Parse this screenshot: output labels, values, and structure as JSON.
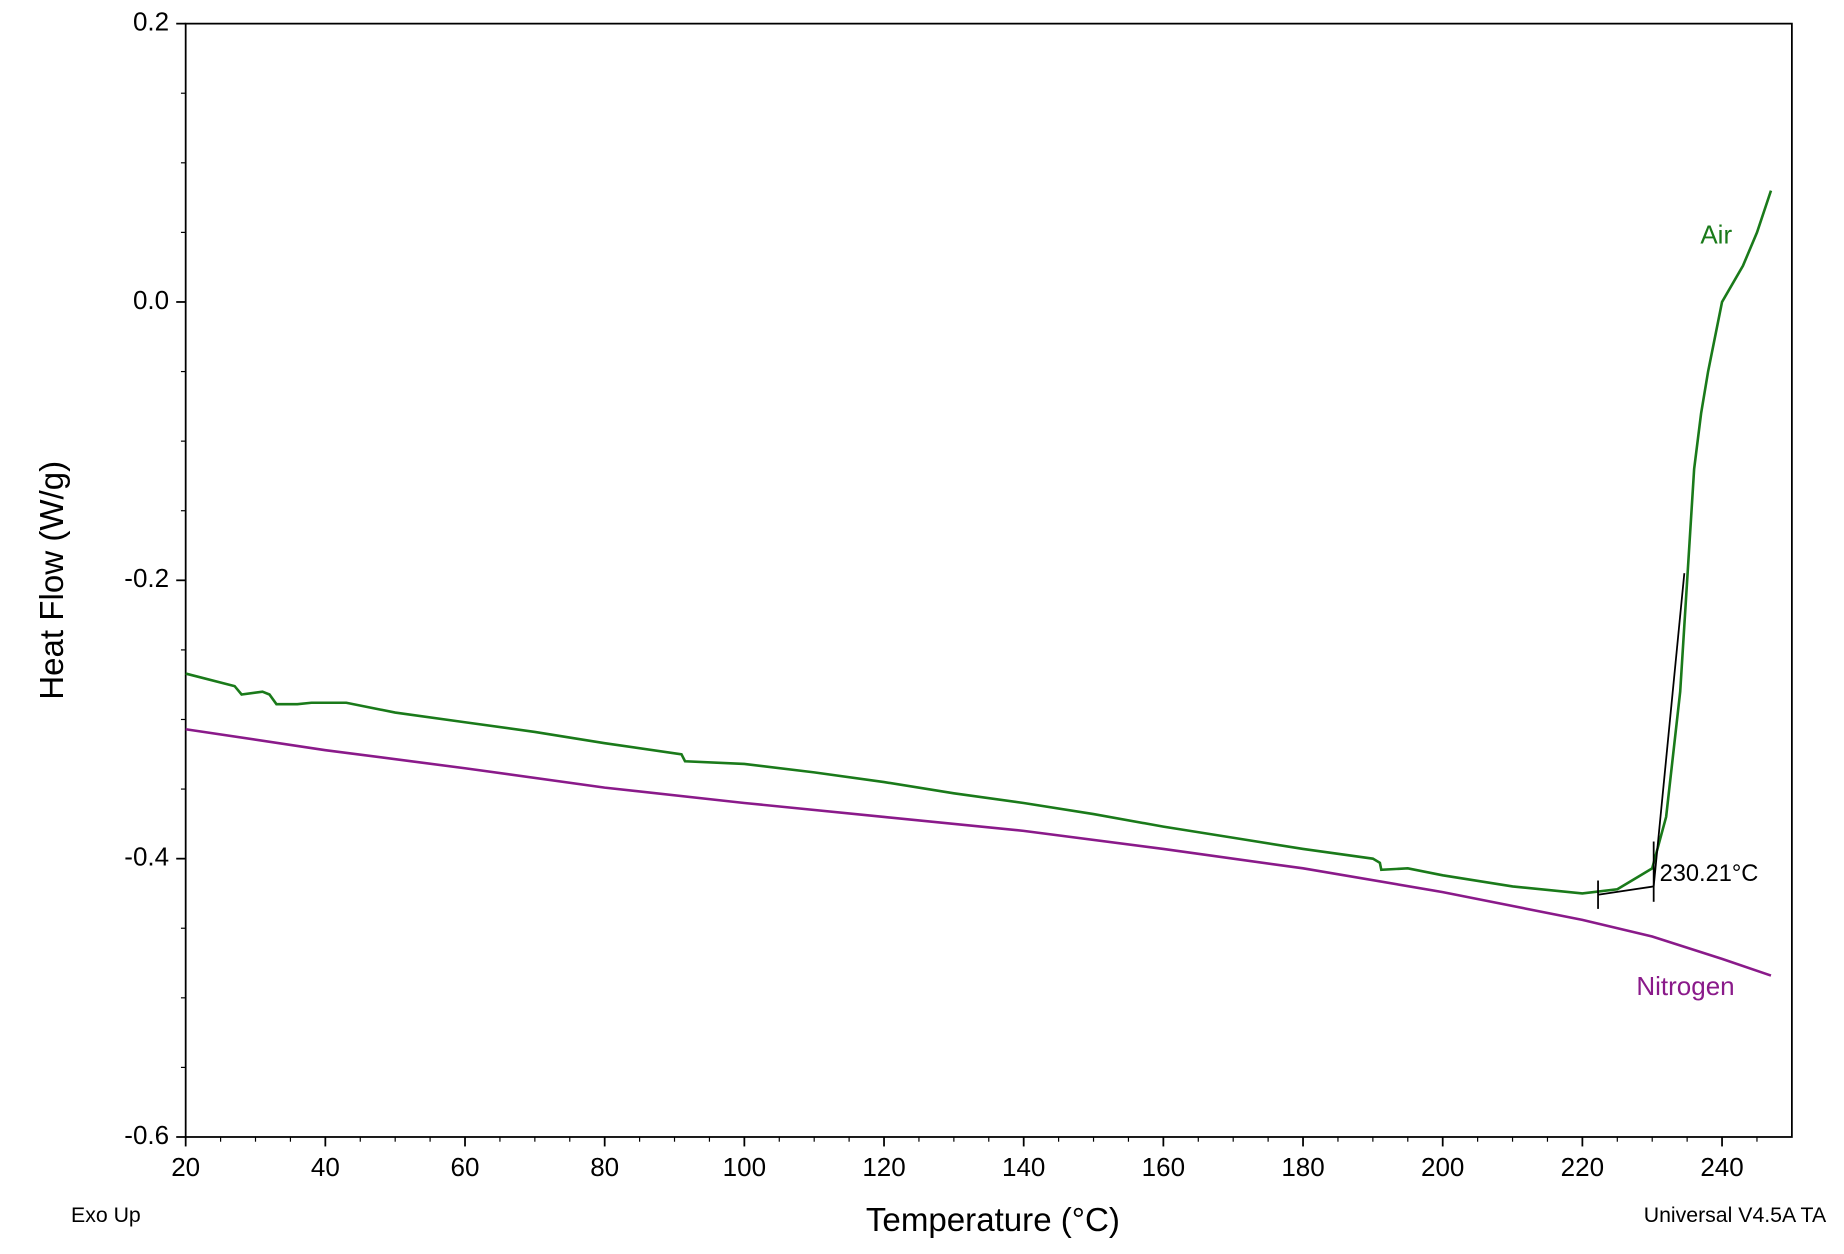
{
  "chart_data": {
    "type": "line",
    "xlabel": "Temperature (°C)",
    "ylabel": "Heat Flow (W/g)",
    "notes": [
      "Exo Up",
      "Universal V4.5A TA"
    ],
    "xlim": [
      20,
      250
    ],
    "ylim": [
      -0.6,
      0.2
    ],
    "xticks": [
      20,
      40,
      60,
      80,
      100,
      120,
      140,
      160,
      180,
      200,
      220,
      240
    ],
    "yticks": [
      -0.6,
      -0.4,
      -0.2,
      {
        "value": 0,
        "label": "0.0"
      },
      0.2
    ],
    "series": [
      {
        "name": "Air",
        "color": "#1a7a1a",
        "x": [
          20,
          27,
          28,
          31,
          32,
          33,
          36,
          38,
          43,
          50,
          60,
          70,
          80,
          91,
          91.5,
          100,
          110,
          120,
          130,
          140,
          150,
          160,
          170,
          180,
          190,
          191,
          191.2,
          195,
          200,
          210,
          220,
          225,
          228,
          230,
          232,
          234,
          235,
          236,
          237,
          238,
          240,
          243,
          245,
          247
        ],
        "values": [
          -0.267,
          -0.276,
          -0.282,
          -0.28,
          -0.282,
          -0.289,
          -0.289,
          -0.288,
          -0.288,
          -0.295,
          -0.302,
          -0.309,
          -0.317,
          -0.325,
          -0.33,
          -0.332,
          -0.338,
          -0.345,
          -0.353,
          -0.36,
          -0.368,
          -0.377,
          -0.385,
          -0.393,
          -0.4,
          -0.403,
          -0.408,
          -0.407,
          -0.412,
          -0.42,
          -0.425,
          -0.422,
          -0.413,
          -0.407,
          -0.37,
          -0.28,
          -0.2,
          -0.12,
          -0.08,
          -0.05,
          0.0,
          0.026,
          0.05,
          0.08
        ]
      },
      {
        "name": "Nitrogen",
        "color": "#8a1a8a",
        "x": [
          20,
          40,
          60,
          80,
          100,
          120,
          140,
          160,
          180,
          200,
          220,
          230,
          240,
          247
        ],
        "values": [
          -0.307,
          -0.322,
          -0.335,
          -0.349,
          -0.36,
          -0.37,
          -0.38,
          -0.393,
          -0.407,
          -0.424,
          -0.444,
          -0.456,
          -0.472,
          -0.484
        ]
      }
    ],
    "annotation": {
      "x": 230.21,
      "label": "230.21°C"
    }
  }
}
